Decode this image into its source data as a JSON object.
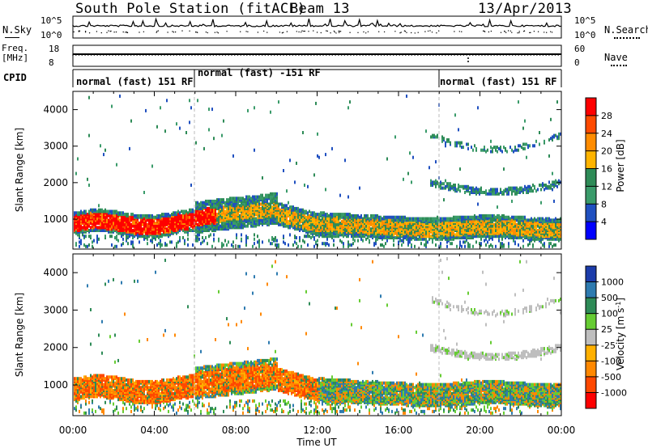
{
  "header": {
    "station": "South Pole Station (fitACF)",
    "beam": "Beam 13",
    "date": "13/Apr/2013"
  },
  "top_panels": {
    "nsky_label": "N.Sky",
    "nsky_ticks": [
      "10^5",
      "10^0"
    ],
    "nsearch_label": "N.Search",
    "freq_label": "Freq.",
    "freq_unit": "[MHz]",
    "freq_ticks": [
      "18",
      "8"
    ],
    "nave_label": "Nave",
    "nave_ticks": [
      "60",
      "0"
    ],
    "cpid_label": "CPID",
    "cpid_segments": [
      {
        "label": "normal (fast) 151 RF",
        "start": "00:00",
        "end": "06:00"
      },
      {
        "label": "normal (fast) -151 RF",
        "start": "06:00",
        "end": "18:00"
      },
      {
        "label": "normal (fast) 151 RF",
        "start": "18:00",
        "end": "24:00"
      }
    ]
  },
  "chart_data": [
    {
      "type": "heatmap",
      "title": "Power",
      "ylabel": "Slant Range [km]",
      "xlabel": "Time UT",
      "ylim": [
        180,
        4500
      ],
      "yticks": [
        1000,
        2000,
        3000,
        4000
      ],
      "xticks": [
        "00:00",
        "04:00",
        "08:00",
        "12:00",
        "16:00",
        "20:00",
        "00:00"
      ],
      "colorbar": {
        "label": "Power [dB]",
        "ticks": [
          "28",
          "24",
          "20",
          "16",
          "12",
          "8",
          "4"
        ],
        "colors": [
          "#ff0000",
          "#ff4a00",
          "#ff8c00",
          "#ffb400",
          "#2e8b57",
          "#3a9b6a",
          "#2050c0",
          "#0000ff"
        ]
      },
      "scatter_bands": [
        {
          "from": 0,
          "to": 24,
          "range_low": 600,
          "range_high": 1200,
          "level": "strong"
        },
        {
          "from": 17.2,
          "to": 24,
          "range_low": 1800,
          "range_high": 3400,
          "level": "weak"
        }
      ]
    },
    {
      "type": "heatmap",
      "title": "Velocity",
      "ylabel": "Slant Range [km]",
      "xlabel": "Time UT",
      "ylim": [
        180,
        4500
      ],
      "yticks": [
        1000,
        2000,
        3000,
        4000
      ],
      "xticks": [
        "00:00",
        "04:00",
        "08:00",
        "12:00",
        "16:00",
        "20:00",
        "00:00"
      ],
      "colorbar": {
        "label": "Velocity [m s-1]",
        "label_main": "Velocity",
        "label_unit": "[m s",
        "label_exp": "-1",
        "label_close": "]",
        "ticks": [
          "1000",
          "500",
          "100",
          "25",
          "-25",
          "-100",
          "-500",
          "-1000"
        ],
        "colors": [
          "#1c3caa",
          "#2e7bb0",
          "#2e8b57",
          "#66cc33",
          "#bebebe",
          "#ffb000",
          "#ff8800",
          "#ff4800",
          "#ff0000"
        ]
      }
    }
  ],
  "axis_label": "Time UT"
}
